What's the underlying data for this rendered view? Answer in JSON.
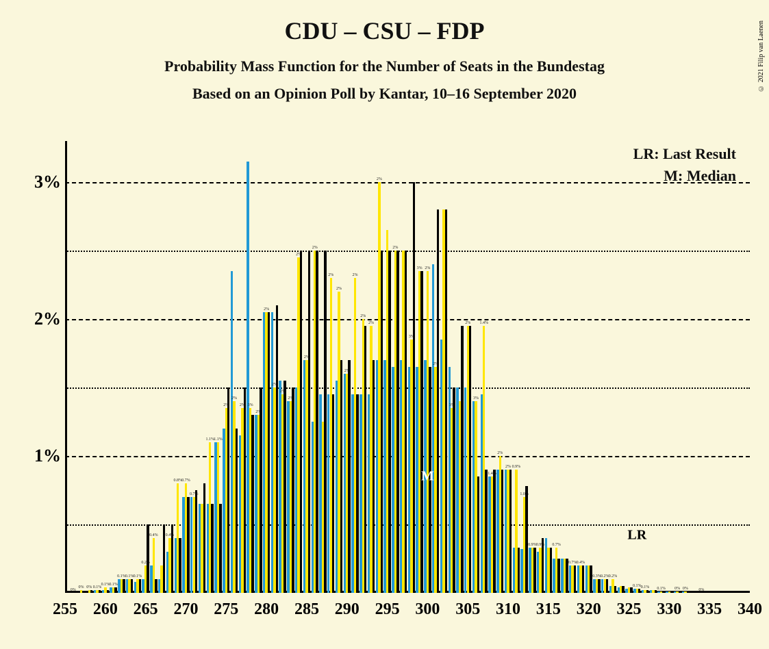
{
  "copyright": "© 2021 Filip van Laenen",
  "title": "CDU – CSU – FDP",
  "subtitle1": "Probability Mass Function for the Number of Seats in the Bundestag",
  "subtitle2": "Based on an Opinion Poll by Kantar, 10–16 September 2020",
  "legend": {
    "lr": "LR: Last Result",
    "m": "M: Median"
  },
  "chart": {
    "type": "bar-grouped",
    "background_color": "#faf7dc",
    "axis_color": "#000000",
    "grid_color": "#000000",
    "ylim": [
      0,
      3.3
    ],
    "y_major_ticks": [
      1,
      2,
      3
    ],
    "y_minor_ticks": [
      0.5,
      1.5,
      2.5
    ],
    "y_major_labels": [
      "1%",
      "2%",
      "3%"
    ],
    "xlim": [
      255,
      340
    ],
    "x_tick_step": 5,
    "x_labels": [
      "255",
      "260",
      "265",
      "270",
      "275",
      "280",
      "285",
      "290",
      "295",
      "300",
      "305",
      "310",
      "315",
      "320",
      "325",
      "330",
      "335",
      "340"
    ],
    "series_colors": {
      "blue": "#2299d5",
      "yellow": "#ffe600",
      "black": "#000000"
    },
    "bar_group_width": 0.88,
    "markers": [
      {
        "label": "M",
        "x": 300,
        "y": 0.85,
        "color": "#ffffff"
      },
      {
        "label": "LR",
        "x": 326,
        "y": 0.42,
        "color": "#000000"
      }
    ],
    "x_values": [
      256,
      257,
      258,
      259,
      260,
      261,
      262,
      263,
      264,
      265,
      266,
      267,
      268,
      269,
      270,
      271,
      272,
      273,
      274,
      275,
      276,
      277,
      278,
      279,
      280,
      281,
      282,
      283,
      284,
      285,
      286,
      287,
      288,
      289,
      290,
      291,
      292,
      293,
      294,
      295,
      296,
      297,
      298,
      299,
      300,
      301,
      302,
      303,
      304,
      305,
      306,
      307,
      308,
      309,
      310,
      311,
      312,
      313,
      314,
      315,
      316,
      317,
      318,
      319,
      320,
      321,
      322,
      323,
      324,
      325,
      326,
      327,
      328,
      329,
      330,
      331,
      332,
      333,
      334,
      335,
      336,
      337,
      338,
      339
    ],
    "series": {
      "blue": [
        0,
        0,
        0,
        0.02,
        0.02,
        0.04,
        0.1,
        0.1,
        0.08,
        0.1,
        0.2,
        0.1,
        0.3,
        0.4,
        0.7,
        0.7,
        0.65,
        0.65,
        1.1,
        1.2,
        2.35,
        1.15,
        3.15,
        1.3,
        2.05,
        2.05,
        1.55,
        1.4,
        1.5,
        1.7,
        1.25,
        1.45,
        1.45,
        1.55,
        1.6,
        1.45,
        1.45,
        1.45,
        1.7,
        1.7,
        1.65,
        1.7,
        1.65,
        1.65,
        1.7,
        2.4,
        1.85,
        1.65,
        1.5,
        1.5,
        1.4,
        1.45,
        0.85,
        0.9,
        0.9,
        0.33,
        0.32,
        0.33,
        0.3,
        0.4,
        0.25,
        0.25,
        0.2,
        0.2,
        0.2,
        0.1,
        0.1,
        0.05,
        0.04,
        0.03,
        0.03,
        0.02,
        0.02,
        0.01,
        0.01,
        0.01,
        0.01,
        0,
        0,
        0,
        0,
        0,
        0,
        0
      ],
      "yellow": [
        0,
        0.02,
        0.02,
        0.02,
        0.04,
        0.04,
        0.1,
        0.1,
        0.1,
        0.2,
        0.4,
        0.2,
        0.4,
        0.8,
        0.8,
        0.7,
        0.65,
        1.1,
        1.1,
        1.35,
        1.4,
        1.35,
        1.35,
        1.3,
        2.05,
        1.5,
        1.45,
        1.4,
        2.45,
        1.7,
        2.5,
        1.25,
        2.3,
        2.2,
        1.6,
        2.3,
        2.0,
        1.95,
        3.0,
        2.65,
        2.5,
        2.5,
        1.85,
        2.35,
        2.35,
        1.65,
        2.8,
        1.35,
        1.4,
        1.95,
        1.4,
        1.95,
        0.85,
        1.0,
        0.9,
        0.9,
        0.7,
        0.33,
        0.33,
        0.33,
        0.33,
        0.25,
        0.2,
        0.2,
        0.2,
        0.1,
        0.1,
        0.1,
        0.05,
        0.04,
        0.03,
        0.02,
        0.02,
        0.01,
        0.01,
        0.01,
        0.01,
        0,
        0,
        0,
        0,
        0,
        0,
        0
      ],
      "black": [
        0,
        0,
        0.02,
        0.02,
        0.02,
        0.04,
        0.1,
        0.1,
        0.1,
        0.5,
        0.1,
        0.5,
        0.5,
        0.4,
        0.7,
        0.75,
        0.8,
        0.65,
        0.65,
        1.5,
        1.2,
        1.5,
        1.3,
        1.5,
        2.05,
        2.1,
        1.55,
        1.5,
        2.5,
        2.5,
        2.5,
        2.5,
        1.45,
        1.7,
        1.7,
        1.45,
        1.95,
        1.7,
        2.5,
        2.5,
        2.5,
        2.5,
        3.0,
        2.35,
        1.65,
        2.8,
        2.8,
        1.5,
        1.95,
        1.95,
        0.85,
        0.9,
        0.9,
        0.9,
        0.9,
        0.33,
        0.78,
        0.33,
        0.4,
        0.33,
        0.25,
        0.25,
        0.2,
        0.2,
        0.2,
        0.1,
        0.1,
        0.05,
        0.05,
        0.04,
        0.03,
        0.02,
        0.02,
        0.01,
        0.01,
        0.01,
        0.01,
        0,
        0,
        0,
        0,
        0,
        0,
        0
      ]
    },
    "bar_labels": {
      "256": "0%",
      "257": "0%",
      "258": "0%",
      "259": "0.1%",
      "260": "0.1%",
      "261": "0.1%",
      "262": "0.1%",
      "263": "0.1%",
      "264": "0.1%",
      "265": "0.2%",
      "266": "0.4%",
      "268": "0.4%",
      "269": "0.8%",
      "270": "0.7%",
      "271": "0.7%",
      "273": "1.1%",
      "274": "1.1%",
      "275": "2%",
      "276": "2%",
      "277": "2%",
      "278": "3%",
      "279": "2%",
      "280": "2%",
      "281": "2%",
      "282": "2%",
      "283": "2%",
      "284": "2%",
      "285": "2%",
      "286": "2%",
      "288": "2%",
      "289": "2%",
      "290": "2%",
      "291": "2%",
      "292": "2%",
      "293": "2%",
      "294": "2%",
      "296": "2%",
      "298": "3%",
      "299": "3%",
      "300": "2%",
      "301": "2%",
      "303": "3%",
      "305": "2%",
      "306": "3%",
      "307": "1.4%",
      "308": "1.4%",
      "309": "2%",
      "310": "2%",
      "311": "0.9%",
      "312": "1.0%",
      "313": "0.9%",
      "314": "0.9%",
      "316": "0.7%",
      "318": "0.7%",
      "319": "0.4%",
      "321": "0.3%",
      "322": "0.2%",
      "323": "0.2%",
      "326": "0.1%",
      "327": "0.1%",
      "329": "0.1%",
      "331": "0%",
      "332": "0%",
      "334": "0%"
    }
  }
}
